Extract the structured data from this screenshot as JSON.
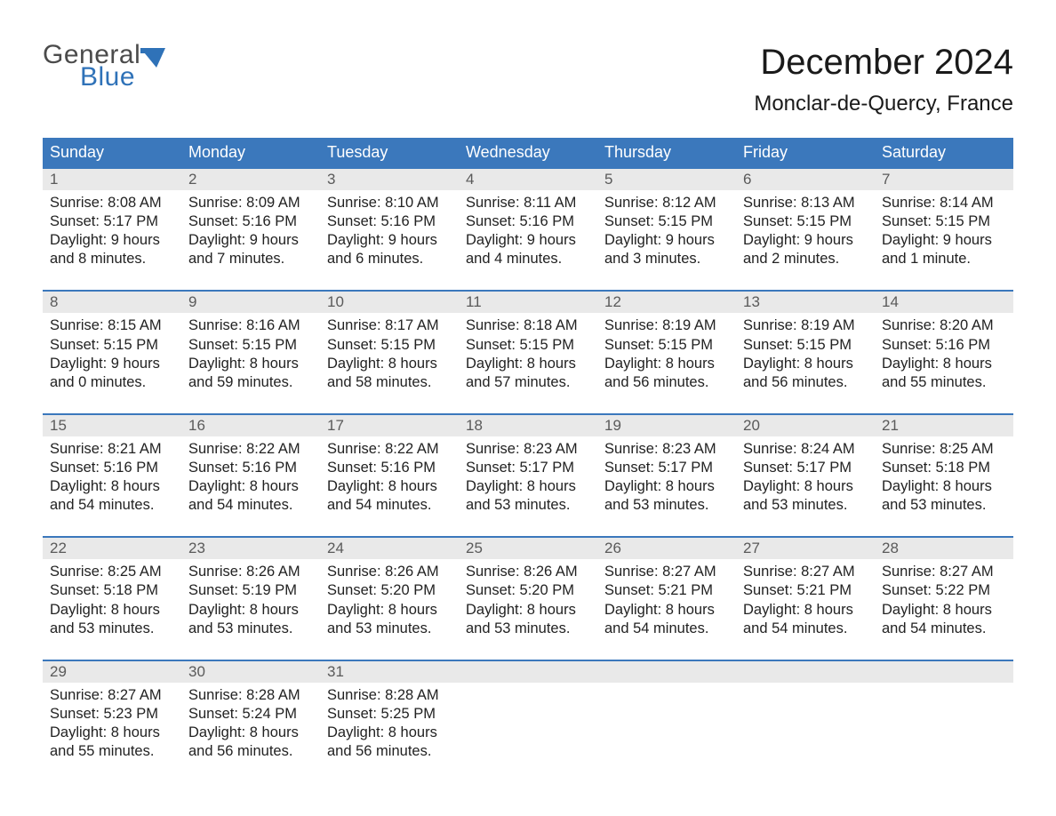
{
  "logo": {
    "word1": "General",
    "word2": "Blue",
    "word1_color": "#4b4b4b",
    "word2_color": "#2f72b8",
    "shape_color": "#2f72b8"
  },
  "title": {
    "month": "December 2024",
    "location": "Monclar-de-Quercy, France",
    "month_fontsize": 40,
    "location_fontsize": 24,
    "text_color": "#1a1a1a"
  },
  "calendar": {
    "header_bg": "#3b78bc",
    "header_text_color": "#ffffff",
    "row_border_color": "#3b78bc",
    "daynum_bg": "#e9e9e9",
    "daynum_color": "#5a5a5a",
    "body_text_color": "#222222",
    "background_color": "#ffffff",
    "day_names": [
      "Sunday",
      "Monday",
      "Tuesday",
      "Wednesday",
      "Thursday",
      "Friday",
      "Saturday"
    ],
    "weeks": [
      [
        {
          "n": "1",
          "sunrise": "8:08 AM",
          "sunset": "5:17 PM",
          "daylight1": "Daylight: 9 hours",
          "daylight2": "and 8 minutes."
        },
        {
          "n": "2",
          "sunrise": "8:09 AM",
          "sunset": "5:16 PM",
          "daylight1": "Daylight: 9 hours",
          "daylight2": "and 7 minutes."
        },
        {
          "n": "3",
          "sunrise": "8:10 AM",
          "sunset": "5:16 PM",
          "daylight1": "Daylight: 9 hours",
          "daylight2": "and 6 minutes."
        },
        {
          "n": "4",
          "sunrise": "8:11 AM",
          "sunset": "5:16 PM",
          "daylight1": "Daylight: 9 hours",
          "daylight2": "and 4 minutes."
        },
        {
          "n": "5",
          "sunrise": "8:12 AM",
          "sunset": "5:15 PM",
          "daylight1": "Daylight: 9 hours",
          "daylight2": "and 3 minutes."
        },
        {
          "n": "6",
          "sunrise": "8:13 AM",
          "sunset": "5:15 PM",
          "daylight1": "Daylight: 9 hours",
          "daylight2": "and 2 minutes."
        },
        {
          "n": "7",
          "sunrise": "8:14 AM",
          "sunset": "5:15 PM",
          "daylight1": "Daylight: 9 hours",
          "daylight2": "and 1 minute."
        }
      ],
      [
        {
          "n": "8",
          "sunrise": "8:15 AM",
          "sunset": "5:15 PM",
          "daylight1": "Daylight: 9 hours",
          "daylight2": "and 0 minutes."
        },
        {
          "n": "9",
          "sunrise": "8:16 AM",
          "sunset": "5:15 PM",
          "daylight1": "Daylight: 8 hours",
          "daylight2": "and 59 minutes."
        },
        {
          "n": "10",
          "sunrise": "8:17 AM",
          "sunset": "5:15 PM",
          "daylight1": "Daylight: 8 hours",
          "daylight2": "and 58 minutes."
        },
        {
          "n": "11",
          "sunrise": "8:18 AM",
          "sunset": "5:15 PM",
          "daylight1": "Daylight: 8 hours",
          "daylight2": "and 57 minutes."
        },
        {
          "n": "12",
          "sunrise": "8:19 AM",
          "sunset": "5:15 PM",
          "daylight1": "Daylight: 8 hours",
          "daylight2": "and 56 minutes."
        },
        {
          "n": "13",
          "sunrise": "8:19 AM",
          "sunset": "5:15 PM",
          "daylight1": "Daylight: 8 hours",
          "daylight2": "and 56 minutes."
        },
        {
          "n": "14",
          "sunrise": "8:20 AM",
          "sunset": "5:16 PM",
          "daylight1": "Daylight: 8 hours",
          "daylight2": "and 55 minutes."
        }
      ],
      [
        {
          "n": "15",
          "sunrise": "8:21 AM",
          "sunset": "5:16 PM",
          "daylight1": "Daylight: 8 hours",
          "daylight2": "and 54 minutes."
        },
        {
          "n": "16",
          "sunrise": "8:22 AM",
          "sunset": "5:16 PM",
          "daylight1": "Daylight: 8 hours",
          "daylight2": "and 54 minutes."
        },
        {
          "n": "17",
          "sunrise": "8:22 AM",
          "sunset": "5:16 PM",
          "daylight1": "Daylight: 8 hours",
          "daylight2": "and 54 minutes."
        },
        {
          "n": "18",
          "sunrise": "8:23 AM",
          "sunset": "5:17 PM",
          "daylight1": "Daylight: 8 hours",
          "daylight2": "and 53 minutes."
        },
        {
          "n": "19",
          "sunrise": "8:23 AM",
          "sunset": "5:17 PM",
          "daylight1": "Daylight: 8 hours",
          "daylight2": "and 53 minutes."
        },
        {
          "n": "20",
          "sunrise": "8:24 AM",
          "sunset": "5:17 PM",
          "daylight1": "Daylight: 8 hours",
          "daylight2": "and 53 minutes."
        },
        {
          "n": "21",
          "sunrise": "8:25 AM",
          "sunset": "5:18 PM",
          "daylight1": "Daylight: 8 hours",
          "daylight2": "and 53 minutes."
        }
      ],
      [
        {
          "n": "22",
          "sunrise": "8:25 AM",
          "sunset": "5:18 PM",
          "daylight1": "Daylight: 8 hours",
          "daylight2": "and 53 minutes."
        },
        {
          "n": "23",
          "sunrise": "8:26 AM",
          "sunset": "5:19 PM",
          "daylight1": "Daylight: 8 hours",
          "daylight2": "and 53 minutes."
        },
        {
          "n": "24",
          "sunrise": "8:26 AM",
          "sunset": "5:20 PM",
          "daylight1": "Daylight: 8 hours",
          "daylight2": "and 53 minutes."
        },
        {
          "n": "25",
          "sunrise": "8:26 AM",
          "sunset": "5:20 PM",
          "daylight1": "Daylight: 8 hours",
          "daylight2": "and 53 minutes."
        },
        {
          "n": "26",
          "sunrise": "8:27 AM",
          "sunset": "5:21 PM",
          "daylight1": "Daylight: 8 hours",
          "daylight2": "and 54 minutes."
        },
        {
          "n": "27",
          "sunrise": "8:27 AM",
          "sunset": "5:21 PM",
          "daylight1": "Daylight: 8 hours",
          "daylight2": "and 54 minutes."
        },
        {
          "n": "28",
          "sunrise": "8:27 AM",
          "sunset": "5:22 PM",
          "daylight1": "Daylight: 8 hours",
          "daylight2": "and 54 minutes."
        }
      ],
      [
        {
          "n": "29",
          "sunrise": "8:27 AM",
          "sunset": "5:23 PM",
          "daylight1": "Daylight: 8 hours",
          "daylight2": "and 55 minutes."
        },
        {
          "n": "30",
          "sunrise": "8:28 AM",
          "sunset": "5:24 PM",
          "daylight1": "Daylight: 8 hours",
          "daylight2": "and 56 minutes."
        },
        {
          "n": "31",
          "sunrise": "8:28 AM",
          "sunset": "5:25 PM",
          "daylight1": "Daylight: 8 hours",
          "daylight2": "and 56 minutes."
        },
        null,
        null,
        null,
        null
      ]
    ],
    "labels": {
      "sunrise_prefix": "Sunrise: ",
      "sunset_prefix": "Sunset: "
    }
  }
}
